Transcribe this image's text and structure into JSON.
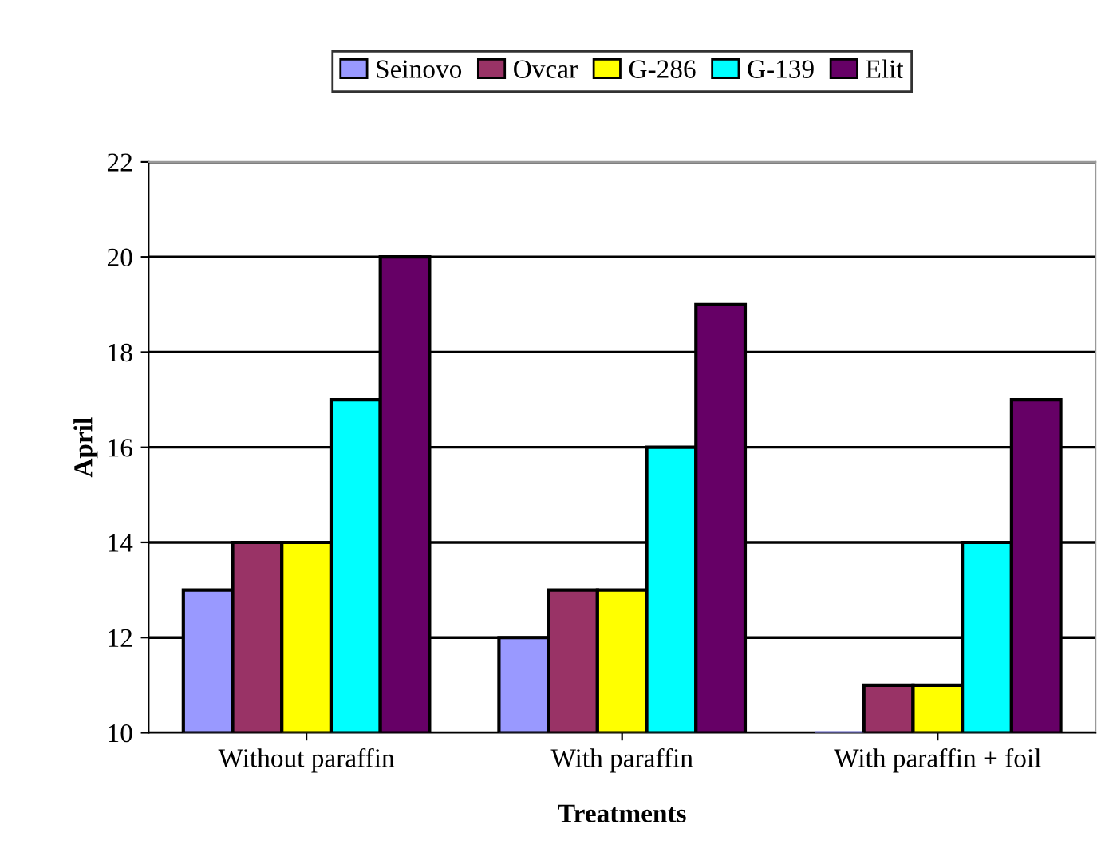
{
  "chart_data": {
    "type": "bar",
    "xlabel": "Treatments",
    "ylabel": "April",
    "categories": [
      "Without paraffin",
      "With paraffin",
      "With paraffin + foil"
    ],
    "series": [
      {
        "name": "Seinovo",
        "color": "#9999ff",
        "values": [
          13,
          12,
          10
        ]
      },
      {
        "name": "Ovcar",
        "color": "#993366",
        "values": [
          14,
          13,
          11
        ]
      },
      {
        "name": "G-286",
        "color": "#ffff00",
        "values": [
          14,
          13,
          11
        ]
      },
      {
        "name": "G-139",
        "color": "#00ffff",
        "values": [
          17,
          16,
          14
        ]
      },
      {
        "name": "Elit",
        "color": "#660066",
        "values": [
          20,
          19,
          17
        ]
      }
    ],
    "ylim": [
      10,
      22
    ],
    "yticks": [
      10,
      12,
      14,
      16,
      18,
      20,
      22
    ],
    "grid": "y",
    "legend": "top"
  }
}
